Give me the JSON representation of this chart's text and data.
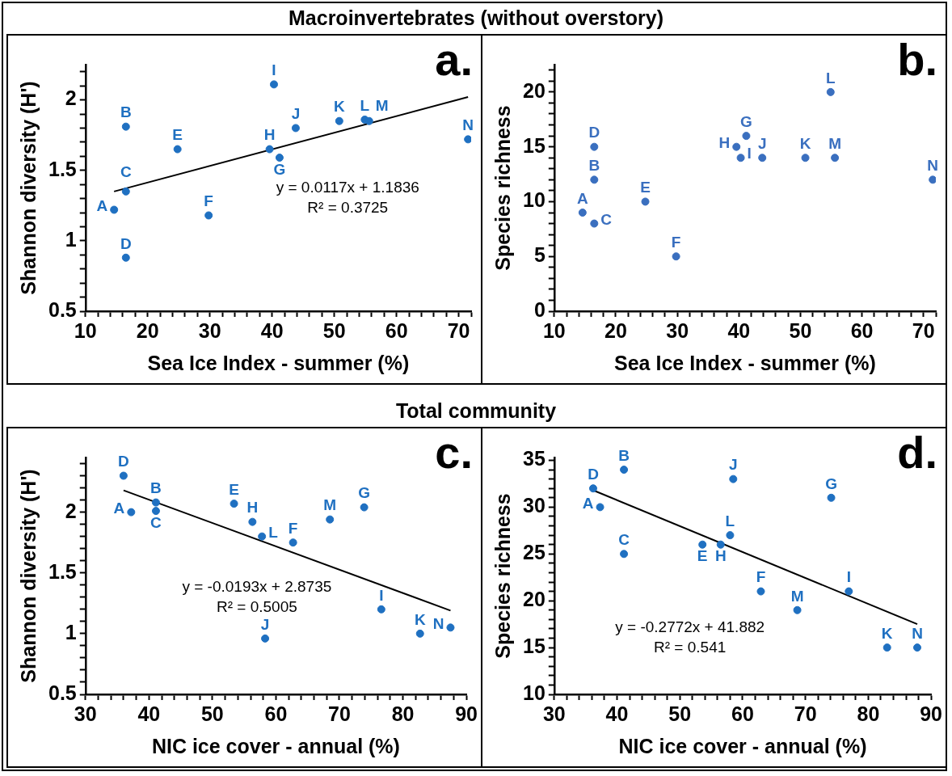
{
  "chart_data": [
    {
      "type": "scatter",
      "title": "Macroinvertebrates (without overstory)",
      "xlabel": "Sea Ice Index - summer (%)",
      "ylabel": "Shannon diversity (H')",
      "xlim": [
        10,
        72
      ],
      "ylim": [
        0.5,
        2.25
      ],
      "xticks": [
        10,
        {
          "value": 12,
          "label": null
        },
        {
          "value": 14,
          "label": null
        },
        {
          "value": 16,
          "label": null
        },
        {
          "value": 18,
          "label": null
        },
        20,
        {
          "value": 22,
          "label": null
        },
        {
          "value": 24,
          "label": null
        },
        {
          "value": 26,
          "label": null
        },
        {
          "value": 28,
          "label": null
        },
        30,
        {
          "value": 32,
          "label": null
        },
        {
          "value": 34,
          "label": null
        },
        {
          "value": 36,
          "label": null
        },
        {
          "value": 38,
          "label": null
        },
        40,
        {
          "value": 42,
          "label": null
        },
        {
          "value": 44,
          "label": null
        },
        {
          "value": 46,
          "label": null
        },
        {
          "value": 48,
          "label": null
        },
        50,
        {
          "value": 52,
          "label": null
        },
        {
          "value": 54,
          "label": null
        },
        {
          "value": 56,
          "label": null
        },
        {
          "value": 58,
          "label": null
        },
        60,
        {
          "value": 62,
          "label": null
        },
        {
          "value": 64,
          "label": null
        },
        {
          "value": 66,
          "label": null
        },
        {
          "value": 68,
          "label": null
        },
        70,
        {
          "value": 72,
          "label": null
        }
      ],
      "yticks": [
        0.5,
        {
          "value": 0.6,
          "label": null
        },
        {
          "value": 0.7,
          "label": null
        },
        {
          "value": 0.8,
          "label": null
        },
        {
          "value": 0.9,
          "label": null
        },
        1,
        {
          "value": 1.1,
          "label": null
        },
        {
          "value": 1.2,
          "label": null
        },
        {
          "value": 1.3,
          "label": null
        },
        {
          "value": 1.4,
          "label": null
        },
        1.5,
        {
          "value": 1.6,
          "label": null
        },
        {
          "value": 1.7,
          "label": null
        },
        {
          "value": 1.8,
          "label": null
        },
        {
          "value": 1.9,
          "label": null
        },
        2,
        {
          "value": 2.1,
          "label": null
        },
        {
          "value": 2.2,
          "label": null
        }
      ],
      "series": [
        {
          "type": "scatter",
          "marker": "circle",
          "color": "#1f70c1",
          "x": [
            14.6,
            16.5,
            16.5,
            16.5,
            24.8,
            29.8,
            41.2,
            39.6,
            40.3,
            43.8,
            50.8,
            54.9,
            55.6,
            71.5
          ],
          "values": [
            1.22,
            1.81,
            1.35,
            0.88,
            1.65,
            1.18,
            1.59,
            1.65,
            2.11,
            1.8,
            1.85,
            1.86,
            1.85,
            1.72
          ]
        },
        {
          "type": "line",
          "color": "#000000",
          "x": [
            14.6,
            71.5
          ],
          "values": [
            1.35,
            2.02
          ]
        }
      ],
      "annotations": [
        "a.",
        "y = 0.0117x + 1.1836",
        "R² = 0.3725",
        {
          "text": "A",
          "x": 14.6,
          "y": 1.22
        },
        {
          "text": "B",
          "x": 16.5,
          "y": 1.81
        },
        {
          "text": "C",
          "x": 16.5,
          "y": 1.35
        },
        {
          "text": "D",
          "x": 16.5,
          "y": 0.88
        },
        {
          "text": "E",
          "x": 24.8,
          "y": 1.65
        },
        {
          "text": "F",
          "x": 29.8,
          "y": 1.18
        },
        {
          "text": "G",
          "x": 41.2,
          "y": 1.59
        },
        {
          "text": "H",
          "x": 39.6,
          "y": 1.65
        },
        {
          "text": "I",
          "x": 40.3,
          "y": 2.11
        },
        {
          "text": "J",
          "x": 43.8,
          "y": 1.8
        },
        {
          "text": "K",
          "x": 50.8,
          "y": 1.85
        },
        {
          "text": "L",
          "x": 54.9,
          "y": 1.86
        },
        {
          "text": "M",
          "x": 55.6,
          "y": 1.85
        },
        {
          "text": "N",
          "x": 71.5,
          "y": 1.72
        }
      ]
    },
    {
      "type": "scatter",
      "xlabel": "Sea Ice Index - summer (%)",
      "ylabel": "Species richness",
      "marker": "circle",
      "xlim": [
        10,
        72
      ],
      "ylim": [
        0,
        22.5
      ],
      "xticks": [
        10,
        {
          "value": 12,
          "label": null
        },
        {
          "value": 14,
          "label": null
        },
        {
          "value": 16,
          "label": null
        },
        {
          "value": 18,
          "label": null
        },
        20,
        {
          "value": 22,
          "label": null
        },
        {
          "value": 24,
          "label": null
        },
        {
          "value": 26,
          "label": null
        },
        {
          "value": 28,
          "label": null
        },
        30,
        {
          "value": 32,
          "label": null
        },
        {
          "value": 34,
          "label": null
        },
        {
          "value": 36,
          "label": null
        },
        {
          "value": 38,
          "label": null
        },
        40,
        {
          "value": 42,
          "label": null
        },
        {
          "value": 44,
          "label": null
        },
        {
          "value": 46,
          "label": null
        },
        {
          "value": 48,
          "label": null
        },
        50,
        {
          "value": 52,
          "label": null
        },
        {
          "value": 54,
          "label": null
        },
        {
          "value": 56,
          "label": null
        },
        {
          "value": 58,
          "label": null
        },
        60,
        {
          "value": 62,
          "label": null
        },
        {
          "value": 64,
          "label": null
        },
        {
          "value": 66,
          "label": null
        },
        {
          "value": 68,
          "label": null
        },
        70,
        {
          "value": 72,
          "label": null
        }
      ],
      "yticks": [
        0,
        {
          "value": 1,
          "label": null
        },
        {
          "value": 2,
          "label": null
        },
        {
          "value": 3,
          "label": null
        },
        {
          "value": 4,
          "label": null
        },
        5,
        {
          "value": 6,
          "label": null
        },
        {
          "value": 7,
          "label": null
        },
        {
          "value": 8,
          "label": null
        },
        {
          "value": 9,
          "label": null
        },
        10,
        {
          "value": 11,
          "label": null
        },
        {
          "value": 12,
          "label": null
        },
        {
          "value": 13,
          "label": null
        },
        {
          "value": 14,
          "label": null
        },
        15,
        {
          "value": 16,
          "label": null
        },
        {
          "value": 17,
          "label": null
        },
        {
          "value": 18,
          "label": null
        },
        {
          "value": 19,
          "label": null
        },
        20,
        {
          "value": 21,
          "label": null
        },
        {
          "value": 22,
          "label": null
        }
      ],
      "series": [
        {
          "type": "scatter",
          "color": "#3a6fbf",
          "x": [
            14.6,
            16.5,
            16.5,
            16.5,
            24.8,
            29.8,
            41.2,
            39.6,
            40.3,
            43.8,
            50.8,
            54.9,
            55.6,
            71.5
          ],
          "values": [
            9,
            12,
            8,
            15,
            10,
            5,
            16,
            15,
            14,
            14,
            14,
            20,
            14,
            12
          ]
        }
      ],
      "annotations": [
        "b.",
        {
          "text": "A",
          "x": 14.6,
          "y": 9
        },
        {
          "text": "B",
          "x": 16.5,
          "y": 12
        },
        {
          "text": "C",
          "x": 16.5,
          "y": 8
        },
        {
          "text": "D",
          "x": 16.5,
          "y": 15
        },
        {
          "text": "E",
          "x": 24.8,
          "y": 10
        },
        {
          "text": "F",
          "x": 29.8,
          "y": 5
        },
        {
          "text": "G",
          "x": 41.2,
          "y": 16
        },
        {
          "text": "H",
          "x": 39.6,
          "y": 15
        },
        {
          "text": "I",
          "x": 40.3,
          "y": 14
        },
        {
          "text": "J",
          "x": 43.8,
          "y": 14
        },
        {
          "text": "K",
          "x": 50.8,
          "y": 14
        },
        {
          "text": "L",
          "x": 54.9,
          "y": 20
        },
        {
          "text": "M",
          "x": 55.6,
          "y": 14
        },
        {
          "text": "N",
          "x": 71.5,
          "y": 12
        }
      ]
    },
    {
      "type": "scatter",
      "title": "Total community",
      "xlabel": "NIC ice cover - annual (%)",
      "ylabel": "Shannon diversity (H')",
      "xlim": [
        30,
        90
      ],
      "ylim": [
        0.5,
        2.45
      ],
      "xticks": [
        30,
        {
          "value": 32,
          "label": null
        },
        {
          "value": 34,
          "label": null
        },
        {
          "value": 36,
          "label": null
        },
        {
          "value": 38,
          "label": null
        },
        40,
        {
          "value": 42,
          "label": null
        },
        {
          "value": 44,
          "label": null
        },
        {
          "value": 46,
          "label": null
        },
        {
          "value": 48,
          "label": null
        },
        50,
        {
          "value": 52,
          "label": null
        },
        {
          "value": 54,
          "label": null
        },
        {
          "value": 56,
          "label": null
        },
        {
          "value": 58,
          "label": null
        },
        60,
        {
          "value": 62,
          "label": null
        },
        {
          "value": 64,
          "label": null
        },
        {
          "value": 66,
          "label": null
        },
        {
          "value": 68,
          "label": null
        },
        70,
        {
          "value": 72,
          "label": null
        },
        {
          "value": 74,
          "label": null
        },
        {
          "value": 76,
          "label": null
        },
        {
          "value": 78,
          "label": null
        },
        80,
        {
          "value": 82,
          "label": null
        },
        {
          "value": 84,
          "label": null
        },
        {
          "value": 86,
          "label": null
        },
        {
          "value": 88,
          "label": null
        },
        90
      ],
      "yticks": [
        0.5,
        {
          "value": 0.6,
          "label": null
        },
        {
          "value": 0.7,
          "label": null
        },
        {
          "value": 0.8,
          "label": null
        },
        {
          "value": 0.9,
          "label": null
        },
        1,
        {
          "value": 1.1,
          "label": null
        },
        {
          "value": 1.2,
          "label": null
        },
        {
          "value": 1.3,
          "label": null
        },
        {
          "value": 1.4,
          "label": null
        },
        1.5,
        {
          "value": 1.6,
          "label": null
        },
        {
          "value": 1.7,
          "label": null
        },
        {
          "value": 1.8,
          "label": null
        },
        {
          "value": 1.9,
          "label": null
        },
        2,
        {
          "value": 2.1,
          "label": null
        },
        {
          "value": 2.2,
          "label": null
        },
        {
          "value": 2.3,
          "label": null
        },
        {
          "value": 2.4,
          "label": null
        }
      ],
      "series": [
        {
          "type": "scatter",
          "marker": "circle",
          "color": "#1f70c1",
          "x": [
            37.2,
            41.1,
            41.1,
            36,
            53.4,
            62.7,
            73.9,
            56.3,
            76.6,
            58.3,
            82.7,
            57.8,
            68.5,
            87.5
          ],
          "values": [
            2.0,
            2.08,
            2.01,
            2.3,
            2.07,
            1.75,
            2.04,
            1.92,
            1.2,
            0.96,
            1.0,
            1.8,
            1.94,
            1.05
          ]
        },
        {
          "type": "line",
          "color": "#000000",
          "x": [
            36,
            87.5
          ],
          "values": [
            2.18,
            1.19
          ]
        }
      ],
      "annotations": [
        "c.",
        "y = -0.0193x + 2.8735",
        "R² = 0.5005",
        {
          "text": "A",
          "x": 37.2,
          "y": 2.0
        },
        {
          "text": "B",
          "x": 41.1,
          "y": 2.08
        },
        {
          "text": "C",
          "x": 41.1,
          "y": 2.01
        },
        {
          "text": "D",
          "x": 36,
          "y": 2.3
        },
        {
          "text": "E",
          "x": 53.4,
          "y": 2.07
        },
        {
          "text": "F",
          "x": 62.7,
          "y": 1.75
        },
        {
          "text": "G",
          "x": 73.9,
          "y": 2.04
        },
        {
          "text": "H",
          "x": 56.3,
          "y": 1.92
        },
        {
          "text": "I",
          "x": 76.6,
          "y": 1.2
        },
        {
          "text": "J",
          "x": 58.3,
          "y": 0.96
        },
        {
          "text": "K",
          "x": 82.7,
          "y": 1.0
        },
        {
          "text": "L",
          "x": 57.8,
          "y": 1.8
        },
        {
          "text": "M",
          "x": 68.5,
          "y": 1.94
        },
        {
          "text": "N",
          "x": 87.5,
          "y": 1.05
        }
      ]
    },
    {
      "type": "scatter",
      "xlabel": "NIC ice cover - annual (%)",
      "ylabel": "Species richness",
      "xlim": [
        30,
        90
      ],
      "ylim": [
        10,
        35.3
      ],
      "xticks": [
        30,
        {
          "value": 32,
          "label": null
        },
        {
          "value": 34,
          "label": null
        },
        {
          "value": 36,
          "label": null
        },
        {
          "value": 38,
          "label": null
        },
        40,
        {
          "value": 42,
          "label": null
        },
        {
          "value": 44,
          "label": null
        },
        {
          "value": 46,
          "label": null
        },
        {
          "value": 48,
          "label": null
        },
        50,
        {
          "value": 52,
          "label": null
        },
        {
          "value": 54,
          "label": null
        },
        {
          "value": 56,
          "label": null
        },
        {
          "value": 58,
          "label": null
        },
        60,
        {
          "value": 62,
          "label": null
        },
        {
          "value": 64,
          "label": null
        },
        {
          "value": 66,
          "label": null
        },
        {
          "value": 68,
          "label": null
        },
        70,
        {
          "value": 72,
          "label": null
        },
        {
          "value": 74,
          "label": null
        },
        {
          "value": 76,
          "label": null
        },
        {
          "value": 78,
          "label": null
        },
        80,
        {
          "value": 82,
          "label": null
        },
        {
          "value": 84,
          "label": null
        },
        {
          "value": 86,
          "label": null
        },
        {
          "value": 88,
          "label": null
        },
        90
      ],
      "yticks": [
        10,
        {
          "value": 11,
          "label": null
        },
        {
          "value": 12,
          "label": null
        },
        {
          "value": 13,
          "label": null
        },
        {
          "value": 14,
          "label": null
        },
        15,
        {
          "value": 16,
          "label": null
        },
        {
          "value": 17,
          "label": null
        },
        {
          "value": 18,
          "label": null
        },
        {
          "value": 19,
          "label": null
        },
        20,
        {
          "value": 21,
          "label": null
        },
        {
          "value": 22,
          "label": null
        },
        {
          "value": 23,
          "label": null
        },
        {
          "value": 24,
          "label": null
        },
        25,
        {
          "value": 26,
          "label": null
        },
        {
          "value": 27,
          "label": null
        },
        {
          "value": 28,
          "label": null
        },
        {
          "value": 29,
          "label": null
        },
        30,
        {
          "value": 31,
          "label": null
        },
        {
          "value": 32,
          "label": null
        },
        {
          "value": 33,
          "label": null
        },
        {
          "value": 34,
          "label": null
        },
        35
      ],
      "series": [
        {
          "type": "scatter",
          "marker": "circle",
          "color": "#1f70c1",
          "x": [
            37.3,
            41.1,
            41.1,
            36.2,
            53.6,
            62.9,
            74.1,
            56.5,
            76.9,
            58.5,
            83,
            58,
            68.7,
            87.8
          ],
          "values": [
            30,
            34,
            25,
            32,
            26,
            21,
            31,
            26,
            21,
            33,
            15,
            27,
            19,
            15
          ]
        },
        {
          "type": "line",
          "color": "#000000",
          "x": [
            36.2,
            87.8
          ],
          "values": [
            31.8,
            17.5
          ]
        }
      ],
      "annotations": [
        "d.",
        "y = -0.2772x + 41.882",
        "R² = 0.541",
        {
          "text": "A",
          "x": 37.3,
          "y": 30
        },
        {
          "text": "B",
          "x": 41.1,
          "y": 34
        },
        {
          "text": "C",
          "x": 41.1,
          "y": 25
        },
        {
          "text": "D",
          "x": 36.2,
          "y": 32
        },
        {
          "text": "E",
          "x": 53.6,
          "y": 26
        },
        {
          "text": "F",
          "x": 62.9,
          "y": 21
        },
        {
          "text": "G",
          "x": 74.1,
          "y": 31
        },
        {
          "text": "H",
          "x": 56.5,
          "y": 26
        },
        {
          "text": "I",
          "x": 76.9,
          "y": 21
        },
        {
          "text": "J",
          "x": 58.5,
          "y": 33
        },
        {
          "text": "K",
          "x": 83,
          "y": 15
        },
        {
          "text": "L",
          "x": 58,
          "y": 27
        },
        {
          "text": "M",
          "x": 68.7,
          "y": 19
        },
        {
          "text": "N",
          "x": 87.8,
          "y": 15
        }
      ]
    }
  ]
}
